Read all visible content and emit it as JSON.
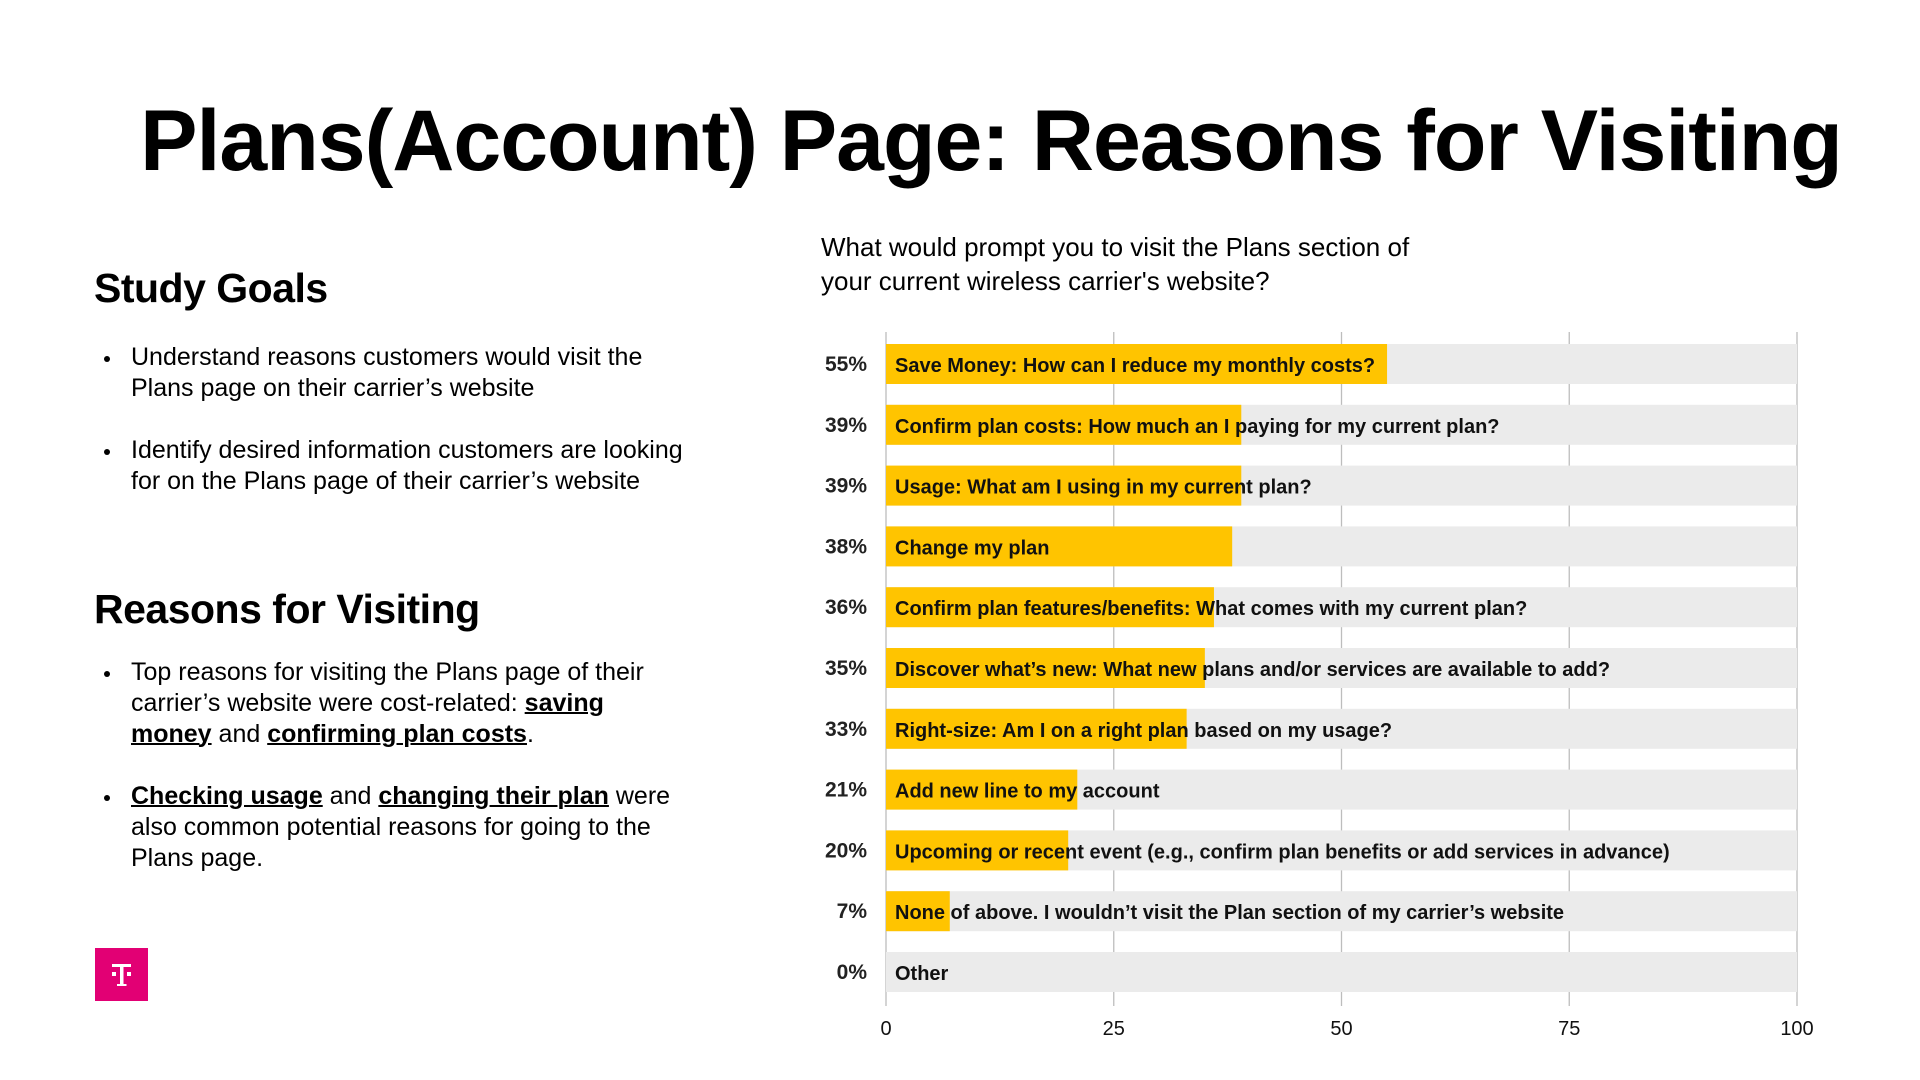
{
  "title": "Plans(Account) Page: Reasons for Visiting",
  "left": {
    "study_goals_heading": "Study Goals",
    "study_goals": [
      "Understand reasons customers would visit the Plans page on their carrier’s website",
      "Identify desired information customers are looking for on the Plans page of their carrier’s website"
    ],
    "reasons_heading": "Reasons for Visiting",
    "reasons": [
      {
        "parts": [
          {
            "text": "Top reasons for visiting the Plans page of their carrier’s website were cost-related: ",
            "emph": false
          },
          {
            "text": "saving money",
            "emph": true
          },
          {
            "text": " and ",
            "emph": false
          },
          {
            "text": "confirming plan costs",
            "emph": true
          },
          {
            "text": ".",
            "emph": false
          }
        ]
      },
      {
        "parts": [
          {
            "text": "Checking usage",
            "emph": true
          },
          {
            "text": " and ",
            "emph": false
          },
          {
            "text": "changing their plan",
            "emph": true
          },
          {
            "text": " were also common potential reasons for going to the Plans page.",
            "emph": false
          }
        ]
      }
    ]
  },
  "logo": {
    "text": "T",
    "color": "#E20074"
  },
  "chart_data": {
    "type": "bar",
    "orientation": "horizontal",
    "title": "What would prompt you to visit the Plans section of your current wireless carrier's website?",
    "categories": [
      "Save Money: How can I reduce my monthly costs?",
      "Confirm plan costs: How much an I paying for my current plan?",
      "Usage: What am I using in my current plan?",
      "Change my plan",
      "Confirm plan features/benefits: What comes with my current plan?",
      "Discover what’s new: What new plans and/or services are available to add?",
      "Right-size: Am I on a right plan based on my usage?",
      "Add new line to my account",
      "Upcoming or recent event (e.g., confirm plan benefits or add services in advance)",
      "None of above. I wouldn’t visit the Plan section of my carrier’s website",
      "Other"
    ],
    "values": [
      55,
      39,
      39,
      38,
      36,
      35,
      33,
      21,
      20,
      7,
      0
    ],
    "value_labels": [
      "55%",
      "39%",
      "39%",
      "38%",
      "36%",
      "35%",
      "33%",
      "21%",
      "20%",
      "7%",
      "0%"
    ],
    "xlim": [
      0,
      100
    ],
    "xticks": [
      "0",
      "25",
      "50",
      "75",
      "100"
    ],
    "grid": true,
    "bar_color": "#FFC400",
    "track_color": "#EBEBEB"
  }
}
